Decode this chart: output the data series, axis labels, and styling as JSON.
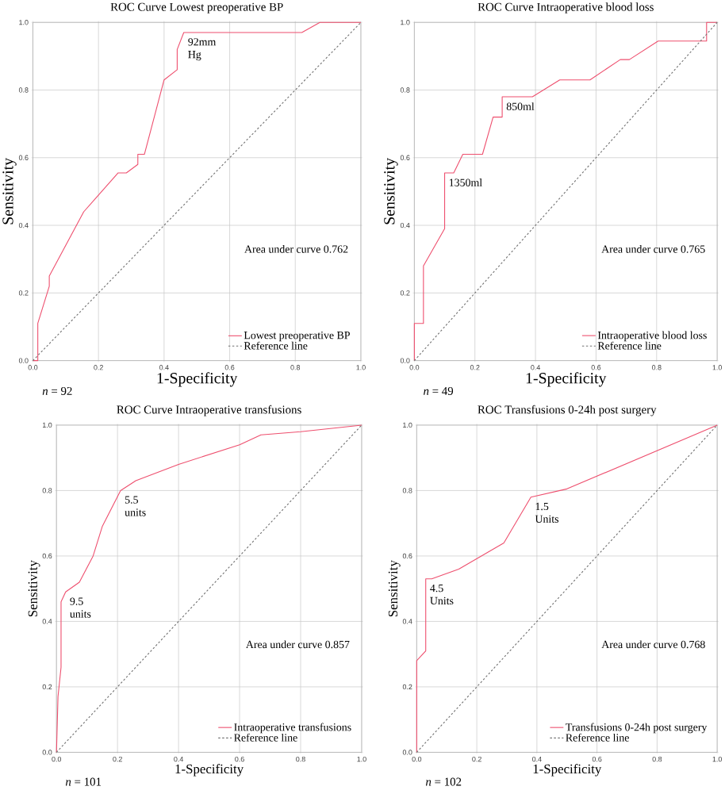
{
  "chart_data": [
    {
      "type": "line",
      "title": "ROC Curve Lowest preoperative BP",
      "xlabel": "1-Specificity",
      "ylabel": "Sensitivity",
      "series": [
        {
          "name": "Lowest preoperative BP",
          "color": "#ee4f6e",
          "line_style": "solid",
          "x": [
            0,
            0.015,
            0.015,
            0.05,
            0.05,
            0.155,
            0.26,
            0.285,
            0.32,
            0.32,
            0.34,
            0.4,
            0.44,
            0.44,
            0.46,
            0.82,
            0.875,
            1
          ],
          "values": [
            0,
            0,
            0.11,
            0.22,
            0.25,
            0.44,
            0.555,
            0.555,
            0.58,
            0.61,
            0.61,
            0.83,
            0.86,
            0.92,
            0.97,
            0.97,
            1,
            1
          ]
        },
        {
          "name": "Reference line",
          "color": "#707070",
          "line_style": "dashed",
          "x": [
            0,
            1
          ],
          "values": [
            0,
            1
          ]
        }
      ],
      "xlim": [
        0,
        1
      ],
      "ylim": [
        0,
        1
      ],
      "xticks": [
        {
          "value": 0,
          "label": "0.0"
        },
        {
          "value": 0.2,
          "label": "0.2"
        },
        {
          "value": 0.4,
          "label": "0.4"
        },
        {
          "value": 0.6,
          "label": "0.6"
        },
        {
          "value": 0.8,
          "label": "0.8"
        },
        {
          "value": 1,
          "label": "1.0"
        }
      ],
      "yticks": [
        {
          "value": 0,
          "label": "0.0"
        },
        {
          "value": 0.2,
          "label": "0.2"
        },
        {
          "value": 0.4,
          "label": "0.4"
        },
        {
          "value": 0.6,
          "label": "0.6"
        },
        {
          "value": 0.8,
          "label": "0.8"
        },
        {
          "value": 1,
          "label": "1.0"
        }
      ],
      "grid": true,
      "legend": "bottom right",
      "annotations": [
        "Area under curve 0.762",
        "*n* = 92",
        {
          "text": "92mm Hg",
          "x": 0.46,
          "y": 0.97
        }
      ]
    },
    {
      "type": "line",
      "title": "ROC Curve Intraoperative blood loss",
      "xlabel": "1-Specificity",
      "ylabel": "Sensitivity",
      "series": [
        {
          "name": "Intraoperative blood loss",
          "color": "#ee4f6e",
          "line_style": "solid",
          "x": [
            0,
            0,
            0.03,
            0.03,
            0.1,
            0.1,
            0.13,
            0.16,
            0.225,
            0.26,
            0.29,
            0.29,
            0.39,
            0.48,
            0.58,
            0.68,
            0.71,
            0.805,
            0.965,
            0.965,
            1
          ],
          "values": [
            0,
            0.11,
            0.11,
            0.28,
            0.39,
            0.555,
            0.555,
            0.61,
            0.61,
            0.72,
            0.72,
            0.78,
            0.78,
            0.83,
            0.83,
            0.89,
            0.89,
            0.945,
            0.945,
            1,
            1
          ]
        },
        {
          "name": "Reference line",
          "color": "#707070",
          "line_style": "dashed",
          "x": [
            0,
            1
          ],
          "values": [
            0,
            1
          ]
        }
      ],
      "xlim": [
        0,
        1
      ],
      "ylim": [
        0,
        1
      ],
      "xticks": [
        {
          "value": 0,
          "label": "0.0"
        },
        {
          "value": 0.2,
          "label": "0.2"
        },
        {
          "value": 0.4,
          "label": "0.4"
        },
        {
          "value": 0.6,
          "label": "0.6"
        },
        {
          "value": 0.8,
          "label": "0.8"
        },
        {
          "value": 1,
          "label": "1.0"
        }
      ],
      "yticks": [
        {
          "value": 0,
          "label": "0.0"
        },
        {
          "value": 0.2,
          "label": "0.2"
        },
        {
          "value": 0.4,
          "label": "0.4"
        },
        {
          "value": 0.6,
          "label": "0.6"
        },
        {
          "value": 0.8,
          "label": "0.8"
        },
        {
          "value": 1,
          "label": "1.0"
        }
      ],
      "grid": true,
      "legend": "bottom right",
      "annotations": [
        "Area under curve 0.765",
        "*n* = 49",
        {
          "text": "1350ml",
          "x": 0.1,
          "y": 0.555
        },
        {
          "text": "850ml",
          "x": 0.29,
          "y": 0.78
        }
      ]
    },
    {
      "type": "line",
      "title": "ROC Curve Intraoperative transfusions",
      "xlabel": "1-Specificity",
      "ylabel": "Sensitivity",
      "series": [
        {
          "name": "Intraoperative transfusions",
          "color": "#ee4f6e",
          "line_style": "solid",
          "x": [
            0,
            0.005,
            0.015,
            0.015,
            0.03,
            0.075,
            0.12,
            0.15,
            0.21,
            0.26,
            0.4,
            0.6,
            0.67,
            0.8,
            1
          ],
          "values": [
            0,
            0.17,
            0.26,
            0.46,
            0.49,
            0.52,
            0.6,
            0.69,
            0.8,
            0.83,
            0.88,
            0.94,
            0.97,
            0.98,
            1
          ]
        },
        {
          "name": "Reference line",
          "color": "#707070",
          "line_style": "dashed",
          "x": [
            0,
            1
          ],
          "values": [
            0,
            1
          ]
        }
      ],
      "xlim": [
        0,
        1
      ],
      "ylim": [
        0,
        1
      ],
      "xticks": [
        {
          "value": 0,
          "label": "0.0"
        },
        {
          "value": 0.2,
          "label": "0.2"
        },
        {
          "value": 0.4,
          "label": "0.4"
        },
        {
          "value": 0.6,
          "label": "0.6"
        },
        {
          "value": 0.8,
          "label": "0.8"
        },
        {
          "value": 1,
          "label": "1.0"
        }
      ],
      "yticks": [
        {
          "value": 0,
          "label": "0.0"
        },
        {
          "value": 0.2,
          "label": "0.2"
        },
        {
          "value": 0.4,
          "label": "0.4"
        },
        {
          "value": 0.6,
          "label": "0.6"
        },
        {
          "value": 0.8,
          "label": "0.8"
        },
        {
          "value": 1,
          "label": "1.0"
        }
      ],
      "grid": true,
      "legend": "bottom right",
      "annotations": [
        "Area under curve 0.857",
        "*n* = 101",
        {
          "text": "9.5 units",
          "x": 0.03,
          "y": 0.49
        },
        {
          "text": "5.5 units",
          "x": 0.21,
          "y": 0.8
        }
      ]
    },
    {
      "type": "line",
      "title": "ROC Transfusions 0-24h post surgery",
      "xlabel": "1-Specificity",
      "ylabel": "Sensitivity",
      "series": [
        {
          "name": "Transfusions 0-24h post surgery",
          "color": "#ee4f6e",
          "line_style": "solid",
          "x": [
            0,
            0,
            0.03,
            0.03,
            0.05,
            0.14,
            0.29,
            0.38,
            0.5,
            1
          ],
          "values": [
            0,
            0.28,
            0.31,
            0.53,
            0.53,
            0.56,
            0.64,
            0.78,
            0.805,
            1
          ]
        },
        {
          "name": "Reference line",
          "color": "#707070",
          "line_style": "dashed",
          "x": [
            0,
            1
          ],
          "values": [
            0,
            1
          ]
        }
      ],
      "xlim": [
        0,
        1
      ],
      "ylim": [
        0,
        1
      ],
      "xticks": [
        {
          "value": 0,
          "label": "0.0"
        },
        {
          "value": 0.2,
          "label": "0.2"
        },
        {
          "value": 0.4,
          "label": "0.4"
        },
        {
          "value": 0.6,
          "label": "0.6"
        },
        {
          "value": 0.8,
          "label": "0.8"
        },
        {
          "value": 1,
          "label": "1.0"
        }
      ],
      "yticks": [
        {
          "value": 0,
          "label": "0.0"
        },
        {
          "value": 0.2,
          "label": "0.2"
        },
        {
          "value": 0.4,
          "label": "0.4"
        },
        {
          "value": 0.6,
          "label": "0.6"
        },
        {
          "value": 0.8,
          "label": "0.8"
        },
        {
          "value": 1,
          "label": "1.0"
        }
      ],
      "grid": true,
      "legend": "bottom right",
      "annotations": [
        "Area under curve 0.768",
        "*n* = 102",
        {
          "text": "4.5 Units",
          "x": 0.03,
          "y": 0.53
        },
        {
          "text": "1.5 Units",
          "x": 0.38,
          "y": 0.78
        }
      ]
    }
  ]
}
